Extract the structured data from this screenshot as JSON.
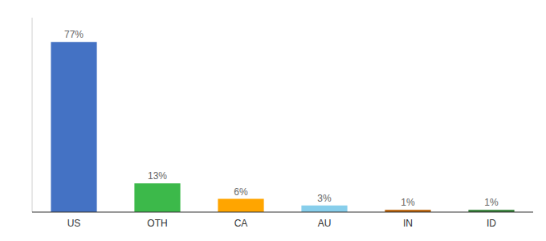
{
  "chart_data": {
    "type": "bar",
    "categories": [
      "US",
      "OTH",
      "CA",
      "AU",
      "IN",
      "ID"
    ],
    "values": [
      77,
      13,
      6,
      3,
      1,
      1
    ],
    "value_labels": [
      "77%",
      "13%",
      "6%",
      "3%",
      "1%",
      "1%"
    ],
    "colors": [
      "#4472C4",
      "#3CB94A",
      "#FFA500",
      "#87CEEB",
      "#B85C00",
      "#2E7D32"
    ],
    "ylim": [
      0,
      88
    ],
    "data_labels": true,
    "tick_labels": "x"
  }
}
